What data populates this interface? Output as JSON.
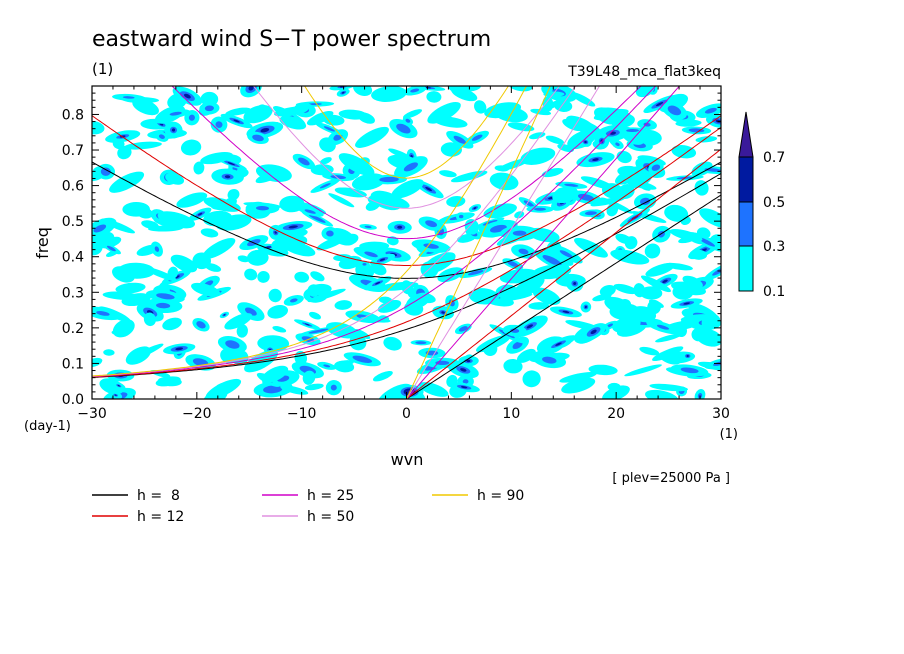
{
  "title": "eastward wind S−T power spectrum",
  "subtitle_left": "(1)",
  "subtitle_right": "T39L48_mca_flat3keq",
  "annotation": "[ plev=25000 Pa ]",
  "chart_data": {
    "type": "heatmap",
    "title": "eastward wind S−T power spectrum",
    "xlabel": "wvn",
    "ylabel": "freq",
    "x_unit": "(1)",
    "y_unit": "(day-1)",
    "xlim": [
      -30,
      30
    ],
    "ylim": [
      0,
      0.88
    ],
    "x_ticks": [
      -30,
      -20,
      -10,
      0,
      10,
      20,
      30
    ],
    "x_tick_labels": [
      "−30",
      "−20",
      "−10",
      "0",
      "10",
      "20",
      "30"
    ],
    "y_ticks": [
      0,
      0.1,
      0.2,
      0.3,
      0.4,
      0.5,
      0.6,
      0.7,
      0.8
    ],
    "y_tick_labels": [
      "0.0",
      "0.1",
      "0.2",
      "0.3",
      "0.4",
      "0.5",
      "0.6",
      "0.7",
      "0.8"
    ],
    "grid": false,
    "colorbar": {
      "levels": [
        0.1,
        0.3,
        0.5,
        0.7
      ],
      "labels": [
        "0.1",
        "0.3",
        "0.5",
        "0.7"
      ],
      "colors": [
        "#00ffff",
        "#1e73ff",
        "#001aa0",
        "#3a1a9a"
      ]
    },
    "series": [
      {
        "name": "h =  8",
        "h": 8,
        "color": "#000000"
      },
      {
        "name": "h = 12",
        "h": 12,
        "color": "#e00000"
      },
      {
        "name": "h = 25",
        "h": 25,
        "color": "#d000c8"
      },
      {
        "name": "h = 50",
        "h": 50,
        "color": "#e090e0"
      },
      {
        "name": "h = 90",
        "h": 90,
        "color": "#f0c800"
      }
    ]
  }
}
